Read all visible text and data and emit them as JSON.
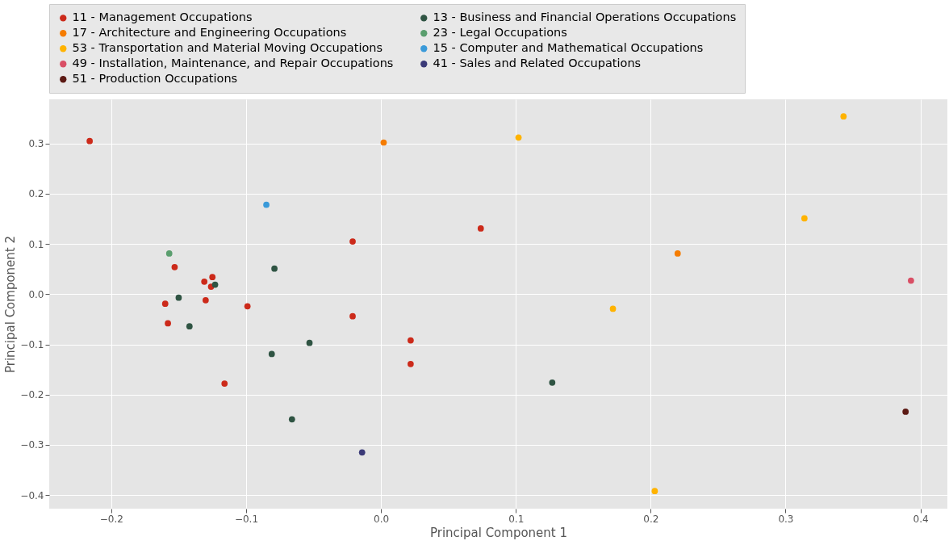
{
  "chart_data": {
    "type": "scatter",
    "xlabel": "Principal Component 1",
    "ylabel": "Principal Component 2",
    "xlim": [
      -0.246,
      0.42
    ],
    "ylim": [
      -0.427,
      0.388
    ],
    "xticks": [
      -0.2,
      -0.1,
      {
        "value": 0,
        "label": "0.0"
      },
      0.1,
      0.2,
      0.3,
      0.4
    ],
    "yticks": [
      -0.4,
      -0.3,
      -0.2,
      -0.1,
      {
        "value": 0,
        "label": "0.0"
      },
      0.1,
      0.2,
      0.3
    ],
    "grid": true,
    "legend": "top",
    "marker": "circle",
    "series": [
      {
        "name": "11 - Management Occupations",
        "color": "#cc2a1a",
        "x": [
          -0.216,
          -0.153,
          -0.131,
          -0.125,
          -0.126,
          -0.13,
          -0.16,
          -0.158,
          -0.099,
          -0.116,
          -0.021,
          -0.021,
          0.022,
          0.022,
          0.074
        ],
        "values": [
          0.305,
          0.054,
          0.025,
          0.034,
          0.015,
          -0.012,
          -0.019,
          -0.058,
          -0.024,
          -0.178,
          0.105,
          -0.044,
          -0.092,
          -0.139,
          0.131
        ]
      },
      {
        "name": "17 - Architecture and Engineering Occupations",
        "color": "#f57c00",
        "x": [
          0.002,
          0.22
        ],
        "values": [
          0.302,
          0.081
        ]
      },
      {
        "name": "53 - Transportation and Material Moving Occupations",
        "color": "#ffb300",
        "x": [
          0.102,
          0.343,
          0.314,
          0.172,
          0.203
        ],
        "values": [
          0.312,
          0.354,
          0.151,
          -0.029,
          -0.392
        ]
      },
      {
        "name": "49 - Installation, Maintenance, and Repair Occupations",
        "color": "#d94f65",
        "x": [
          0.393
        ],
        "values": [
          0.027
        ]
      },
      {
        "name": "51 - Production Occupations",
        "color": "#5c1a14",
        "x": [
          0.389
        ],
        "values": [
          -0.234
        ]
      },
      {
        "name": "13 - Business and Financial Operations Occupations",
        "color": "#2f5443",
        "x": [
          -0.079,
          -0.123,
          -0.15,
          -0.142,
          -0.081,
          -0.053,
          -0.066,
          0.127
        ],
        "values": [
          0.051,
          0.019,
          -0.007,
          -0.064,
          -0.119,
          -0.097,
          -0.249,
          -0.176
        ]
      },
      {
        "name": "23 - Legal Occupations",
        "color": "#5a9e6e",
        "x": [
          -0.157
        ],
        "values": [
          0.081
        ]
      },
      {
        "name": "15 - Computer and Mathematical Occupations",
        "color": "#3a9ad9",
        "x": [
          -0.085
        ],
        "values": [
          0.178
        ]
      },
      {
        "name": "41 - Sales and Related Occupations",
        "color": "#3b3a78",
        "x": [
          -0.014
        ],
        "values": [
          -0.315
        ]
      }
    ]
  }
}
